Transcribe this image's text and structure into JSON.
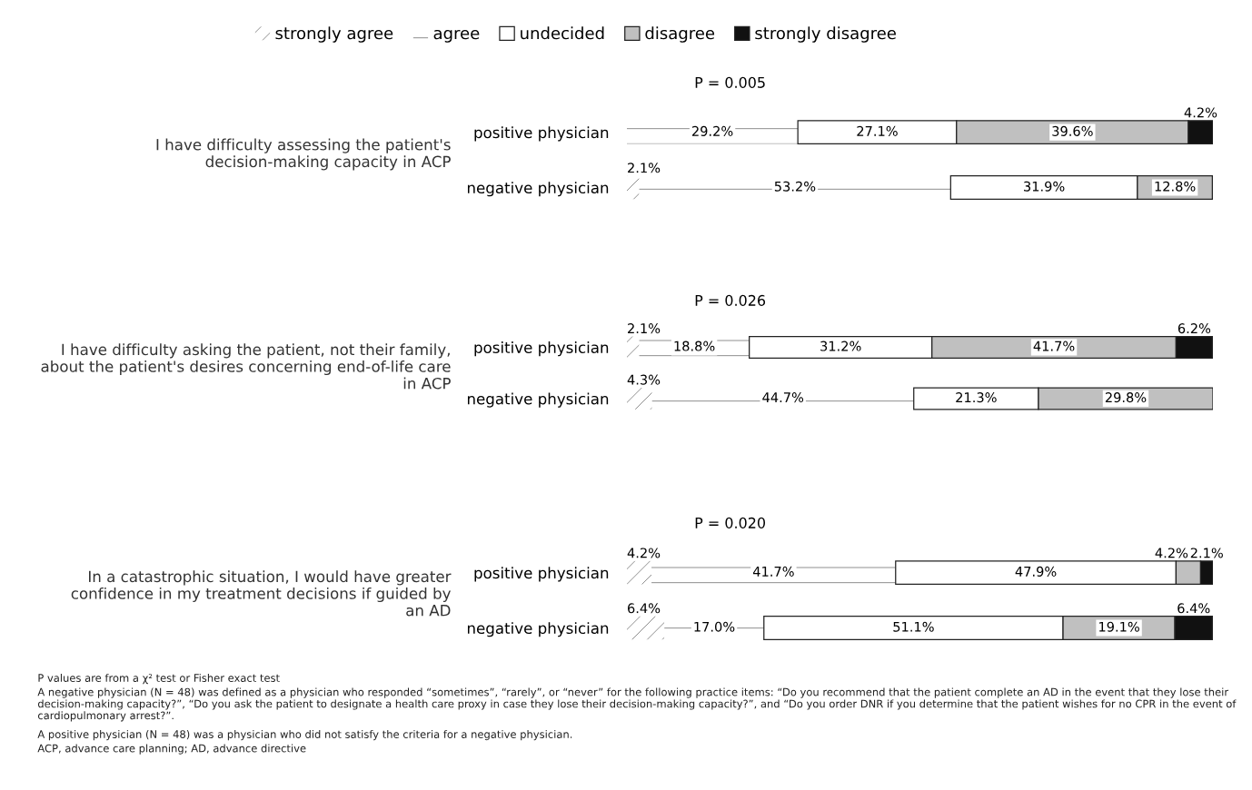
{
  "chart_data": [
    {
      "type": "bar",
      "orientation": "horizontal",
      "stacked": true,
      "title": "P = 0.005",
      "ylabel": "I have difficulty assessing the patient's\ndecision-making capacity in ACP",
      "categories": [
        "positive physician",
        "negative physician"
      ],
      "legend": "top",
      "tick_labels": "y",
      "series": [
        {
          "name": "strongly agree",
          "color": "#ffffff",
          "values": [
            0,
            2.1
          ],
          "value_labels": [
            null,
            "2.1%"
          ]
        },
        {
          "name": "agree",
          "color": "#ffffff",
          "values": [
            29.2,
            53.2
          ],
          "value_labels": [
            "29.2%",
            "53.2%"
          ]
        },
        {
          "name": "undecided",
          "color": "#ffffff",
          "values": [
            27.1,
            31.9
          ],
          "value_labels": [
            "27.1%",
            "31.9%"
          ]
        },
        {
          "name": "disagree",
          "color": "#c0c0c0",
          "values": [
            39.6,
            12.8
          ],
          "value_labels": [
            "39.6%",
            "12.8%"
          ]
        },
        {
          "name": "strongly disagree",
          "color": "#111111",
          "values": [
            4.2,
            0
          ],
          "value_labels": [
            "4.2%",
            null
          ]
        }
      ]
    },
    {
      "type": "bar",
      "orientation": "horizontal",
      "stacked": true,
      "title": "P = 0.026",
      "ylabel": "I have difficulty asking the patient, not their family,\nabout the patient's desires concerning end-of-life care\nin ACP",
      "categories": [
        "positive physician",
        "negative physician"
      ],
      "tick_labels": "y",
      "series": [
        {
          "color": "#ffffff",
          "values": [
            2.1,
            4.3
          ],
          "value_labels": [
            "2.1%",
            "4.3%"
          ]
        },
        {
          "color": "#ffffff",
          "values": [
            18.8,
            44.7
          ],
          "value_labels": [
            "18.8%",
            "44.7%"
          ]
        },
        {
          "color": "#ffffff",
          "values": [
            31.2,
            21.3
          ],
          "value_labels": [
            "31.2%",
            "21.3%"
          ]
        },
        {
          "color": "#c0c0c0",
          "values": [
            41.7,
            29.8
          ],
          "value_labels": [
            "41.7%",
            "29.8%"
          ]
        },
        {
          "color": "#111111",
          "values": [
            6.2,
            0
          ],
          "value_labels": [
            "6.2%",
            null
          ]
        }
      ]
    },
    {
      "type": "bar",
      "orientation": "horizontal",
      "stacked": true,
      "title": "P = 0.020",
      "ylabel": "In a catastrophic situation, I would have greater\nconfidence in my treatment decisions if guided by\nan AD",
      "categories": [
        "positive physician",
        "negative physician"
      ],
      "tick_labels": "y",
      "series": [
        {
          "color": "#ffffff",
          "values": [
            4.2,
            6.4
          ],
          "value_labels": [
            "4.2%",
            "6.4%"
          ]
        },
        {
          "color": "#ffffff",
          "values": [
            41.7,
            17.0
          ],
          "value_labels": [
            "41.7%",
            "17.0%"
          ]
        },
        {
          "color": "#ffffff",
          "values": [
            47.9,
            51.1
          ],
          "value_labels": [
            "47.9%",
            "51.1%"
          ]
        },
        {
          "color": "#c0c0c0",
          "values": [
            4.2,
            19.1
          ],
          "value_labels": [
            "4.2%",
            "19.1%"
          ]
        },
        {
          "color": "#111111",
          "values": [
            2.1,
            6.4
          ],
          "value_labels": [
            "2.1%",
            "6.4%"
          ]
        }
      ],
      "annotations": [
        "P values are from a χ² test or Fisher exact test",
        "A negative physician (N = 48) was defined as a physician who responded “sometimes”, “rarely”, or “never” for the following practice items: “Do you recommend that the patient complete an AD in the event that they lose their decision-making capacity?”, “Do you ask the patient to designate a health care proxy in case they lose their decision-making capacity?”, and “Do you order DNR if you determine that the patient wishes for no CPR in the event of cardiopulmonary arrest?”.",
        "A positive physician (N = 48) was a physician who did not satisfy the criteria for a negative physician.",
        "ACP, advance care planning; AD, advance directive"
      ]
    }
  ]
}
